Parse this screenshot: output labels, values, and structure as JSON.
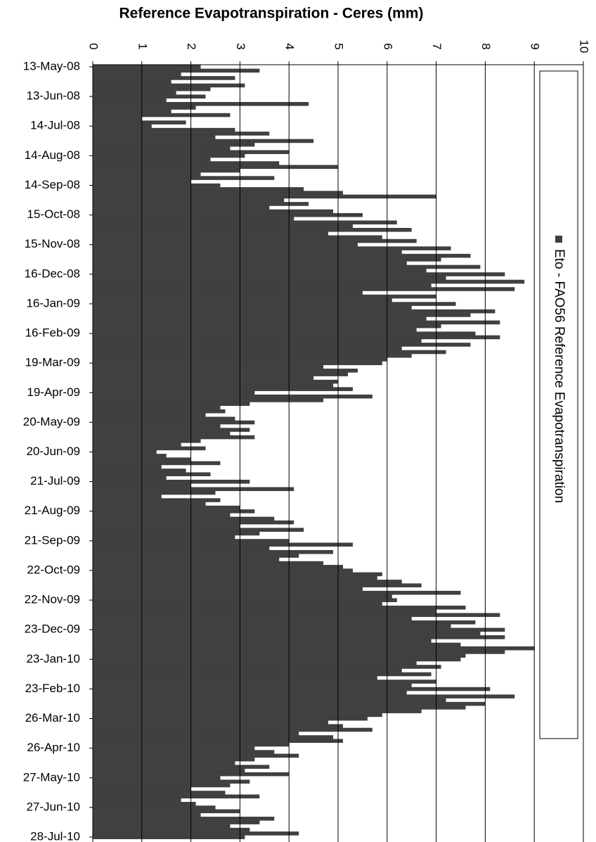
{
  "chart_data": {
    "type": "bar",
    "orientation": "horizontal",
    "title": "Reference Evapotranspiration - Ceres (mm)",
    "categories": [
      "13-May-08",
      null,
      null,
      null,
      null,
      null,
      null,
      null,
      "13-Jun-08",
      null,
      null,
      null,
      null,
      null,
      null,
      null,
      "14-Jul-08",
      null,
      null,
      null,
      null,
      null,
      null,
      null,
      "14-Aug-08",
      null,
      null,
      null,
      null,
      null,
      null,
      null,
      "14-Sep-08",
      null,
      null,
      null,
      null,
      null,
      null,
      null,
      "15-Oct-08",
      null,
      null,
      null,
      null,
      null,
      null,
      null,
      "15-Nov-08",
      null,
      null,
      null,
      null,
      null,
      null,
      null,
      "16-Dec-08",
      null,
      null,
      null,
      null,
      null,
      null,
      null,
      "16-Jan-09",
      null,
      null,
      null,
      null,
      null,
      null,
      null,
      "16-Feb-09",
      null,
      null,
      null,
      null,
      null,
      null,
      null,
      "19-Mar-09",
      null,
      null,
      null,
      null,
      null,
      null,
      null,
      "19-Apr-09",
      null,
      null,
      null,
      null,
      null,
      null,
      null,
      "20-May-09",
      null,
      null,
      null,
      null,
      null,
      null,
      null,
      "20-Jun-09",
      null,
      null,
      null,
      null,
      null,
      null,
      null,
      "21-Jul-09",
      null,
      null,
      null,
      null,
      null,
      null,
      null,
      "21-Aug-09",
      null,
      null,
      null,
      null,
      null,
      null,
      null,
      "21-Sep-09",
      null,
      null,
      null,
      null,
      null,
      null,
      null,
      "22-Oct-09",
      null,
      null,
      null,
      null,
      null,
      null,
      null,
      "22-Nov-09",
      null,
      null,
      null,
      null,
      null,
      null,
      null,
      "23-Dec-09",
      null,
      null,
      null,
      null,
      null,
      null,
      null,
      "23-Jan-10",
      null,
      null,
      null,
      null,
      null,
      null,
      null,
      "23-Feb-10",
      null,
      null,
      null,
      null,
      null,
      null,
      null,
      "26-Mar-10",
      null,
      null,
      null,
      null,
      null,
      null,
      null,
      "26-Apr-10",
      null,
      null,
      null,
      null,
      null,
      null,
      null,
      "27-May-10",
      null,
      null,
      null,
      null,
      null,
      null,
      null,
      "27-Jun-10",
      null,
      null,
      null,
      null,
      null,
      null,
      null,
      "28-Jul-10"
    ],
    "series": [
      {
        "name": "Eto - FAO56 Reference Evapotranspiration",
        "color": "#404040",
        "values": [
          2.2,
          3.4,
          1.8,
          2.9,
          1.6,
          3.1,
          2.4,
          1.7,
          2.3,
          1.5,
          4.4,
          2.1,
          1.6,
          2.8,
          1.0,
          1.9,
          1.2,
          2.9,
          3.6,
          2.5,
          4.5,
          3.3,
          2.8,
          4.0,
          3.1,
          2.4,
          3.8,
          5.0,
          3.0,
          2.2,
          3.7,
          2.0,
          2.6,
          4.3,
          5.1,
          7.0,
          3.9,
          4.4,
          3.6,
          4.9,
          5.5,
          4.1,
          6.2,
          5.3,
          6.5,
          4.8,
          5.9,
          6.6,
          5.4,
          7.3,
          6.3,
          7.7,
          7.1,
          6.4,
          7.9,
          6.8,
          8.4,
          7.2,
          8.8,
          6.9,
          8.6,
          5.5,
          7.0,
          6.1,
          7.4,
          6.5,
          8.2,
          7.7,
          6.8,
          8.3,
          7.1,
          6.6,
          7.8,
          8.3,
          6.7,
          7.7,
          6.3,
          7.2,
          6.5,
          6.0,
          5.9,
          4.7,
          5.4,
          5.2,
          4.5,
          5.0,
          4.9,
          5.3,
          3.3,
          5.7,
          4.7,
          3.2,
          2.6,
          2.7,
          2.3,
          2.9,
          3.3,
          2.6,
          3.2,
          2.8,
          3.3,
          2.2,
          1.8,
          2.3,
          1.3,
          1.5,
          2.0,
          2.6,
          1.4,
          1.9,
          2.4,
          1.5,
          3.2,
          2.0,
          4.1,
          2.5,
          1.4,
          2.6,
          2.3,
          3.0,
          3.3,
          2.8,
          3.7,
          4.1,
          3.0,
          4.3,
          3.4,
          2.9,
          4.0,
          5.3,
          3.6,
          4.9,
          4.2,
          3.8,
          4.7,
          5.1,
          5.3,
          5.9,
          5.8,
          6.3,
          6.7,
          5.5,
          7.5,
          6.1,
          6.2,
          5.9,
          7.6,
          7.0,
          8.3,
          6.5,
          7.8,
          7.3,
          8.4,
          7.9,
          8.4,
          6.9,
          7.5,
          9.0,
          8.4,
          7.6,
          7.5,
          6.6,
          7.1,
          6.3,
          6.9,
          5.8,
          7.0,
          6.5,
          8.1,
          6.4,
          8.6,
          7.2,
          8.0,
          7.6,
          6.7,
          5.9,
          5.6,
          4.8,
          5.1,
          5.7,
          4.2,
          4.9,
          5.1,
          4.0,
          3.3,
          3.7,
          4.2,
          3.3,
          2.9,
          3.6,
          3.1,
          4.0,
          2.6,
          3.2,
          2.8,
          2.0,
          2.7,
          3.4,
          1.8,
          2.1,
          2.5,
          3.0,
          2.2,
          3.7,
          3.4,
          2.8,
          3.2,
          4.2,
          3.1
        ]
      }
    ],
    "ylim": [
      0,
      10
    ],
    "yticks": [
      0,
      1,
      2,
      3,
      4,
      5,
      6,
      7,
      8,
      9,
      10
    ],
    "grid": true,
    "legend": "right"
  }
}
